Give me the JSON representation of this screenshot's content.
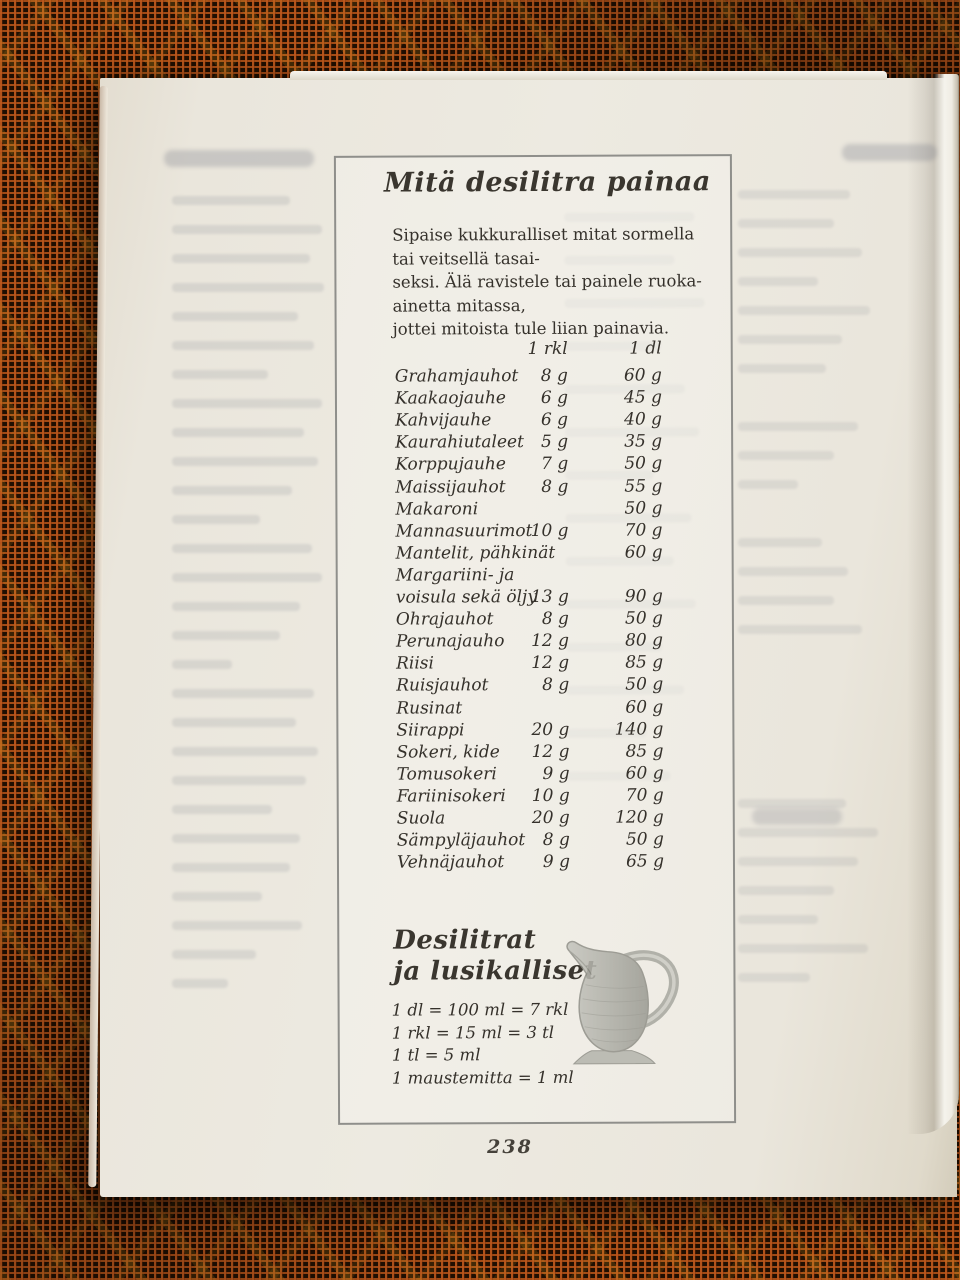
{
  "page": {
    "title": "Mitä desilitra painaa",
    "intro_lines": [
      "Sipaise kukkuralliset mitat sormella tai veitsellä tasai-",
      "seksi. Älä ravistele tai painele ruoka-ainetta mitassa,",
      "jottei mitoista tule liian painavia."
    ],
    "number": "238"
  },
  "table": {
    "headers": {
      "rkl": "1 rkl",
      "dl": "1 dl"
    },
    "rows": [
      {
        "name": "Grahamjauhot",
        "rkl": "8 g",
        "dl": "60 g"
      },
      {
        "name": "Kaakaojauhe",
        "rkl": "6 g",
        "dl": "45 g"
      },
      {
        "name": "Kahvijauhe",
        "rkl": "6 g",
        "dl": "40 g"
      },
      {
        "name": "Kaurahiutaleet",
        "rkl": "5 g",
        "dl": "35 g"
      },
      {
        "name": "Korppujauhe",
        "rkl": "7 g",
        "dl": "50 g"
      },
      {
        "name": "Maissijauhot",
        "rkl": "8 g",
        "dl": "55 g"
      },
      {
        "name": "Makaroni",
        "rkl": "",
        "dl": "50 g"
      },
      {
        "name": "Mannasuurimot",
        "rkl": "10 g",
        "dl": "70 g"
      },
      {
        "name": "Mantelit, pähkinät",
        "rkl": "",
        "dl": "60 g"
      },
      {
        "name": "Margariini- ja",
        "rkl": "",
        "dl": ""
      },
      {
        "name": "voisula sekä öljy",
        "rkl": "13 g",
        "dl": "90 g"
      },
      {
        "name": "Ohrajauhot",
        "rkl": "8 g",
        "dl": "50 g"
      },
      {
        "name": "Perunajauho",
        "rkl": "12 g",
        "dl": "80 g"
      },
      {
        "name": "Riisi",
        "rkl": "12 g",
        "dl": "85 g"
      },
      {
        "name": "Ruisjauhot",
        "rkl": "8 g",
        "dl": "50 g"
      },
      {
        "name": "Rusinat",
        "rkl": "",
        "dl": "60 g"
      },
      {
        "name": "Siirappi",
        "rkl": "20 g",
        "dl": "140 g"
      },
      {
        "name": "Sokeri, kide",
        "rkl": "12 g",
        "dl": "85 g"
      },
      {
        "name": "Tomusokeri",
        "rkl": "9 g",
        "dl": "60 g"
      },
      {
        "name": "Fariinisokeri",
        "rkl": "10 g",
        "dl": "70 g"
      },
      {
        "name": "Suola",
        "rkl": "20 g",
        "dl": "120 g"
      },
      {
        "name": "Sämpyläjauhot",
        "rkl": "8 g",
        "dl": "50 g"
      },
      {
        "name": "Vehnäjauhot",
        "rkl": "9 g",
        "dl": "65 g"
      }
    ]
  },
  "spoons": {
    "title_line1": "Desilitrat",
    "title_line2": "ja lusikalliset",
    "lines": [
      "1 dl = 100 ml = 7 rkl",
      "1 rkl = 15 ml = 3 tl",
      "1 tl = 5 ml",
      "1 maustemitta = 1 ml"
    ]
  },
  "icons": {
    "pitcher": "pitcher-engraving"
  },
  "colors": {
    "fabric_orange": "#b4541d",
    "fabric_dark": "#200f02",
    "fabric_gold": "#c9961f",
    "paper": "#ece9e0",
    "frame_border": "#8f8f8b",
    "ink": "#35312b"
  }
}
